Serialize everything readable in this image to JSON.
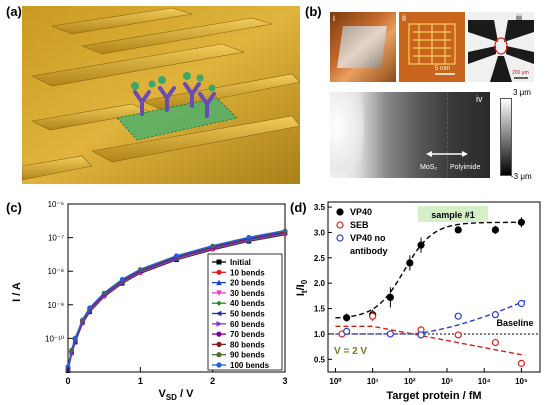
{
  "panels": {
    "a": {
      "label": "(a)"
    },
    "b": {
      "label": "(b)",
      "sub_i": "i",
      "sub_ii": "ii",
      "sub_iii": "iii",
      "sub_iv": "iv",
      "scale_ii": "5 mm",
      "scale_iii": "200 μm",
      "colorbar_top": "3 μm",
      "colorbar_bottom": "-3 μm",
      "left_material": "MoS₂",
      "right_material": "Polyimide"
    },
    "c": {
      "label": "(c)"
    },
    "d": {
      "label": "(d)"
    }
  },
  "colors": {
    "gold": "#d9a62a",
    "graphene": "#3a9c5c",
    "antibody": "#6a4bb5",
    "vp40": "#000000",
    "seb": "#d0241b",
    "noab": "#2b3bd0"
  },
  "chart_data": [
    {
      "type": "line",
      "xlabel": "V_SD / V",
      "ylabel": "I / A",
      "xlim": [
        0,
        3
      ],
      "ylim_log": [
        -11,
        -6
      ],
      "x_ticks": [
        "0",
        "1",
        "2",
        "3"
      ],
      "y_ticks": [
        "10⁻¹⁰",
        "10⁻⁹",
        "10⁻⁸",
        "10⁻⁷",
        "10⁻⁶"
      ],
      "legend_position": "bottom-right",
      "series": [
        {
          "name": "Initial",
          "color": "#000000",
          "marker": "square"
        },
        {
          "name": "10 bends",
          "color": "#e41a1c",
          "marker": "circle"
        },
        {
          "name": "20 bends",
          "color": "#1f3fd6",
          "marker": "triangle-up"
        },
        {
          "name": "30 bends",
          "color": "#e040d0",
          "marker": "triangle-down"
        },
        {
          "name": "40 bends",
          "color": "#1f8f1f",
          "marker": "diamond"
        },
        {
          "name": "50 bends",
          "color": "#2b2bb0",
          "marker": "triangle-left"
        },
        {
          "name": "60 bends",
          "color": "#8a2be2",
          "marker": "triangle-right"
        },
        {
          "name": "70 bends",
          "color": "#7a0099",
          "marker": "hexagon"
        },
        {
          "name": "80 bends",
          "color": "#8b1a1a",
          "marker": "star"
        },
        {
          "name": "90 bends",
          "color": "#556b2f",
          "marker": "pentagon"
        },
        {
          "name": "100 bends",
          "color": "#2060e0",
          "marker": "circle"
        }
      ],
      "curve_x": [
        0.0,
        0.05,
        0.1,
        0.2,
        0.3,
        0.5,
        0.75,
        1.0,
        1.5,
        2.0,
        2.5,
        3.0
      ],
      "curve_log_y": [
        -10.9,
        -10.4,
        -10.05,
        -9.5,
        -9.15,
        -8.7,
        -8.3,
        -8.0,
        -7.6,
        -7.3,
        -7.05,
        -6.85
      ]
    },
    {
      "type": "scatter",
      "xlabel": "Target protein / fM",
      "ylabel": "I_t / I_0",
      "xscale": "log",
      "xlim_log": [
        -0.2,
        5.5
      ],
      "ylim": [
        0.25,
        3.6
      ],
      "x_ticks": [
        "10⁰",
        "10¹",
        "10²",
        "10³",
        "10⁴",
        "10⁵"
      ],
      "y_ticks": [
        "0.5",
        "1.0",
        "1.5",
        "2.0",
        "2.5",
        "3.0",
        "3.5"
      ],
      "annotations": {
        "sample": "sample #1",
        "voltage": "V = 2 V",
        "baseline": "Baseline"
      },
      "baseline": 1.0,
      "series": [
        {
          "name": "VP40",
          "color": "#000000",
          "marker": "filled-circle",
          "x": [
            2,
            10,
            30,
            100,
            200,
            2000,
            20000,
            100000
          ],
          "y": [
            1.32,
            1.38,
            1.72,
            2.4,
            2.75,
            3.05,
            3.05,
            3.2
          ],
          "err": [
            0.08,
            0.1,
            0.2,
            0.15,
            0.15,
            0.05,
            0.08,
            0.1
          ]
        },
        {
          "name": "SEB",
          "color": "#d0241b",
          "marker": "open-circle",
          "x": [
            1.5,
            10,
            200,
            2000,
            20000,
            100000
          ],
          "y": [
            1.0,
            1.35,
            1.08,
            0.98,
            0.83,
            0.42
          ],
          "err": [
            0.07,
            0.1,
            0.05,
            0.04,
            0.04,
            0.03
          ]
        },
        {
          "name": "VP40 no antibody",
          "color": "#2b3bd0",
          "marker": "open-circle",
          "x": [
            2,
            30,
            200,
            2000,
            20000,
            100000
          ],
          "y": [
            1.05,
            1.0,
            0.98,
            1.35,
            1.38,
            1.6
          ],
          "err": [
            0.04,
            0.04,
            0.03,
            0.04,
            0.04,
            0.04
          ]
        }
      ],
      "legend": [
        "VP40",
        "SEB",
        "VP40 no",
        "antibody"
      ]
    }
  ]
}
